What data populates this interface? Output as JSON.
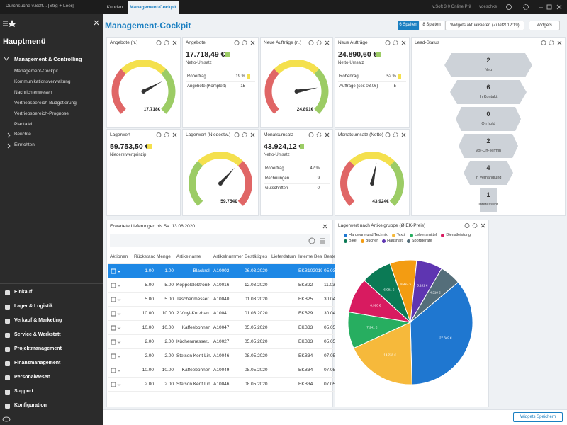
{
  "titlebar": {
    "search": "Durchsuche v.Soft... [Strg + Leer]",
    "tabs": [
      "Kunden",
      "Management-Cockpit"
    ],
    "app": "v.Soft 3.0 Online Prä",
    "user": "vdeschke"
  },
  "sidebar": {
    "title": "Hauptmenü",
    "group": "Management & Controlling",
    "items": [
      "Management-Cockpit",
      "Kommunikationsverwaltung",
      "Nachrichtenwesen",
      "Vertriebsbereich-Budgetierung",
      "Vertriebsbereich-Prognose",
      "Plantafel"
    ],
    "subgroups": [
      "Berichte",
      "Einrichten"
    ],
    "modules": [
      "Einkauf",
      "Lager & Logistik",
      "Verkauf & Marketing",
      "Service & Werkstatt",
      "Projektmanagement",
      "Finanzmanagement",
      "Personalwesen",
      "Support",
      "Konfiguration"
    ]
  },
  "header": {
    "title": "Management-Cockpit",
    "buttons": [
      "6 Spalten",
      "8 Spalten",
      "Widgets aktualisieren (Zuletzt 12:19)",
      "Widgets"
    ]
  },
  "gauges": [
    {
      "title": "Angebote (n.)",
      "value": "17.718€"
    },
    {
      "title": "Neue Aufträge (n.)",
      "value": "24.891€"
    },
    {
      "title": "Lagerwert (Niedestw.)",
      "value": "59.754€"
    },
    {
      "title": "Monatsumsatz (Netto)",
      "value": "43.924€"
    }
  ],
  "kpis": [
    {
      "title": "Angebote",
      "amount": "17.718,49 €",
      "sub": "Netto-Umsatz",
      "rows": [
        [
          "Rohertrag",
          "19 %"
        ],
        [
          "Angebote (Komplett)",
          "15"
        ]
      ]
    },
    {
      "title": "Neue Aufträge",
      "amount": "24.890,60 €",
      "sub": "Netto-Umsatz",
      "rows": [
        [
          "Rohertrag",
          "52 %"
        ],
        [
          "Aufträge (seit 03.06)",
          "5"
        ]
      ]
    },
    {
      "title": "Lagerwert",
      "amount": "59.753,50 €",
      "sub": "Niederstwertprinzip",
      "rows": []
    },
    {
      "title": "Monatsumsatz",
      "amount": "43.924,12 €",
      "sub": "Netto-Umsatz",
      "rows": [
        [
          "Rohertrag",
          "42 %"
        ],
        [
          "Rechnungen",
          "9"
        ],
        [
          "Gutschriften",
          "0"
        ]
      ]
    }
  ],
  "lead": {
    "title": "Lead-Status",
    "stages": [
      [
        "2",
        "Neu"
      ],
      [
        "6",
        "In Kontakt"
      ],
      [
        "0",
        "On hold"
      ],
      [
        "2",
        "Vor-Ort-Termin"
      ],
      [
        "4",
        "In Verhandlung"
      ],
      [
        "1",
        "Interessent"
      ]
    ]
  },
  "table": {
    "title": "Erwartete Lieferungen bis Sa. 13.06.2020",
    "columns": [
      "Aktionen",
      "Rückstand",
      "Menge",
      "Artikelname",
      "Artikelnummer",
      "Bestätigtes",
      "Lieferdatum",
      "Interne Best...",
      "Bestell"
    ],
    "rows": [
      [
        "1.00",
        "1.00",
        "Blackroll",
        "A10002",
        "06.03.2020",
        "EKB102019",
        "05.03.2"
      ],
      [
        "5.00",
        "5.00",
        "Koppelelektronik",
        "A10016",
        "12.03.2020",
        "EKB22",
        "11.03.2"
      ],
      [
        "5.00",
        "5.00",
        "Taschenmesser...",
        "A10040",
        "01.03.2020",
        "EKB25",
        "30.04.2"
      ],
      [
        "10.00",
        "10.00",
        "2 Vinyl-Kurzhan...",
        "A10041",
        "01.03.2020",
        "EKB29",
        "30.04.2"
      ],
      [
        "10.00",
        "10.00",
        "Kaffeebohnen",
        "A10047",
        "05.05.2020",
        "EKB33",
        "05.05.2"
      ],
      [
        "2.00",
        "2.00",
        "Küchenmesser...",
        "A10027",
        "05.05.2020",
        "EKB33",
        "05.05.2"
      ],
      [
        "2.00",
        "2.00",
        "Stetson Kent Lin...",
        "A10046",
        "08.05.2020",
        "EKB34",
        "07.05.2"
      ],
      [
        "10.00",
        "10.00",
        "Kaffeebohnen",
        "A10049",
        "08.05.2020",
        "EKB34",
        "07.05.2"
      ],
      [
        "2.00",
        "2.00",
        "Stetson Kent Lin...",
        "A10046",
        "08.05.2020",
        "EKB34",
        "07.05.2"
      ]
    ]
  },
  "chart_data": {
    "type": "pie",
    "title": "Lagerwert nach Artikelgruppe (Ø EK-Preis)",
    "categories": [
      "Hardware und Technik",
      "Textil",
      "Lebensmittel",
      "Dienstleistung",
      "Bike",
      "Bücher",
      "Haushalt",
      "Sportgeräte"
    ],
    "values": [
      27349,
      14231,
      7241,
      6990,
      6081,
      5321,
      5181,
      4210
    ],
    "value_labels": [
      "27.349 €",
      "14.231 €",
      "7.241 €",
      "6.990 €",
      "6.081 €",
      "5.321 €",
      "5.181 €",
      "4.210 €"
    ],
    "colors": [
      "#1f77d0",
      "#f6b93b",
      "#27ae60",
      "#d81b60",
      "#0b7a55",
      "#f39c12",
      "#5e35b1",
      "#546e7a"
    ]
  },
  "footer": {
    "button": "Widgets Speichern"
  }
}
